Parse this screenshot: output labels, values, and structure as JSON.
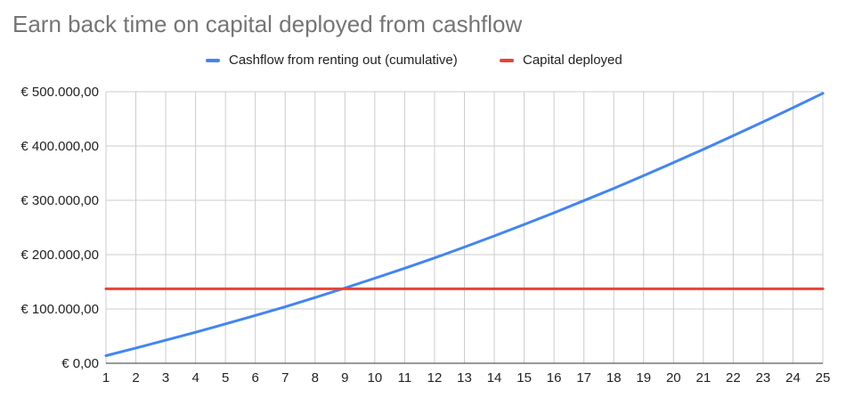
{
  "chart_data": {
    "type": "line",
    "title": "Earn back time on capital deployed from cashflow",
    "xlabel": "",
    "ylabel": "",
    "x": [
      1,
      2,
      3,
      4,
      5,
      6,
      7,
      8,
      9,
      10,
      11,
      12,
      13,
      14,
      15,
      16,
      17,
      18,
      19,
      20,
      21,
      22,
      23,
      24,
      25
    ],
    "x_tick_labels": [
      "1",
      "2",
      "3",
      "4",
      "5",
      "6",
      "7",
      "8",
      "9",
      "10",
      "11",
      "12",
      "13",
      "14",
      "15",
      "16",
      "17",
      "18",
      "19",
      "20",
      "21",
      "22",
      "23",
      "24",
      "25"
    ],
    "ylim": [
      0,
      500000
    ],
    "y_ticks": [
      0,
      100000,
      200000,
      300000,
      400000,
      500000
    ],
    "y_tick_labels": [
      "€ 0,00",
      "€ 100.000,00",
      "€ 200.000,00",
      "€ 300.000,00",
      "€ 400.000,00",
      "€ 500.000,00"
    ],
    "grid": true,
    "legend_position": "top-center",
    "series": [
      {
        "name": "Cashflow from renting out (cumulative)",
        "color": "#4285f4",
        "values": [
          14000,
          28000,
          42500,
          57000,
          72500,
          88000,
          104000,
          121000,
          138500,
          156500,
          175000,
          194000,
          214000,
          234500,
          255500,
          277000,
          299500,
          322000,
          345500,
          369500,
          394000,
          419000,
          444500,
          470500,
          497000
        ]
      },
      {
        "name": "Capital deployed",
        "color": "#ea4335",
        "values": [
          137000,
          137000,
          137000,
          137000,
          137000,
          137000,
          137000,
          137000,
          137000,
          137000,
          137000,
          137000,
          137000,
          137000,
          137000,
          137000,
          137000,
          137000,
          137000,
          137000,
          137000,
          137000,
          137000,
          137000,
          137000
        ]
      }
    ]
  }
}
